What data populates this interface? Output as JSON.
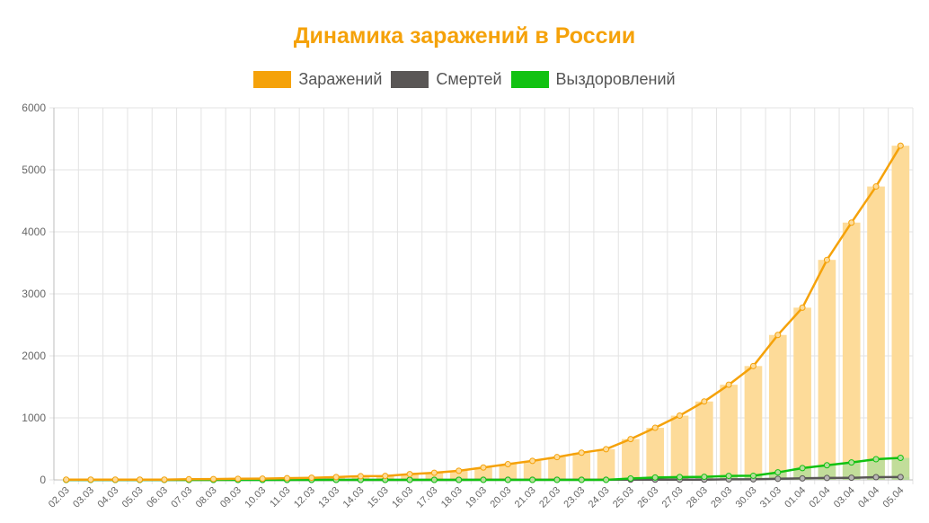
{
  "chart_data": {
    "type": "bar",
    "title": "Динамика заражений в России",
    "xlabel": "",
    "ylabel": "",
    "ylim": [
      0,
      6000
    ],
    "yticks": [
      0,
      1000,
      2000,
      3000,
      4000,
      5000,
      6000
    ],
    "grid": true,
    "legend_position": "top",
    "categories": [
      "02.03",
      "03.03",
      "04.03",
      "05.03",
      "06.03",
      "07.03",
      "08.03",
      "09.03",
      "10.03",
      "11.03",
      "12.03",
      "13.03",
      "14.03",
      "15.03",
      "16.03",
      "17.03",
      "18.03",
      "19.03",
      "20.03",
      "21.03",
      "22.03",
      "23.03",
      "24.03",
      "25.03",
      "26.03",
      "27.03",
      "28.03",
      "29.03",
      "30.03",
      "31.03",
      "01.04",
      "02.04",
      "03.04",
      "04.04",
      "05.04"
    ],
    "series": [
      {
        "name": "Заражений",
        "color": "#f5a20a",
        "bar_color": "#fddb99",
        "values": [
          3,
          3,
          3,
          4,
          4,
          10,
          13,
          17,
          20,
          28,
          34,
          45,
          59,
          63,
          93,
          114,
          147,
          199,
          253,
          306,
          367,
          438,
          495,
          658,
          840,
          1036,
          1264,
          1534,
          1836,
          2337,
          2777,
          3548,
          4149,
          4731,
          5389
        ]
      },
      {
        "name": "Смертей",
        "color": "#5a5756",
        "bar_color": "#b8b6b5",
        "values": [
          0,
          0,
          0,
          0,
          0,
          0,
          0,
          0,
          0,
          0,
          0,
          0,
          0,
          0,
          0,
          0,
          0,
          1,
          1,
          1,
          1,
          1,
          1,
          3,
          3,
          4,
          4,
          8,
          9,
          17,
          24,
          30,
          34,
          43,
          45
        ]
      },
      {
        "name": "Выздоровлений",
        "color": "#12c212",
        "bar_color": "#b7dd9a",
        "values": [
          0,
          0,
          0,
          0,
          0,
          0,
          0,
          0,
          0,
          0,
          0,
          0,
          0,
          0,
          0,
          0,
          0,
          0,
          0,
          0,
          0,
          0,
          0,
          22,
          38,
          45,
          49,
          64,
          66,
          121,
          190,
          235,
          281,
          333,
          355
        ]
      }
    ]
  }
}
